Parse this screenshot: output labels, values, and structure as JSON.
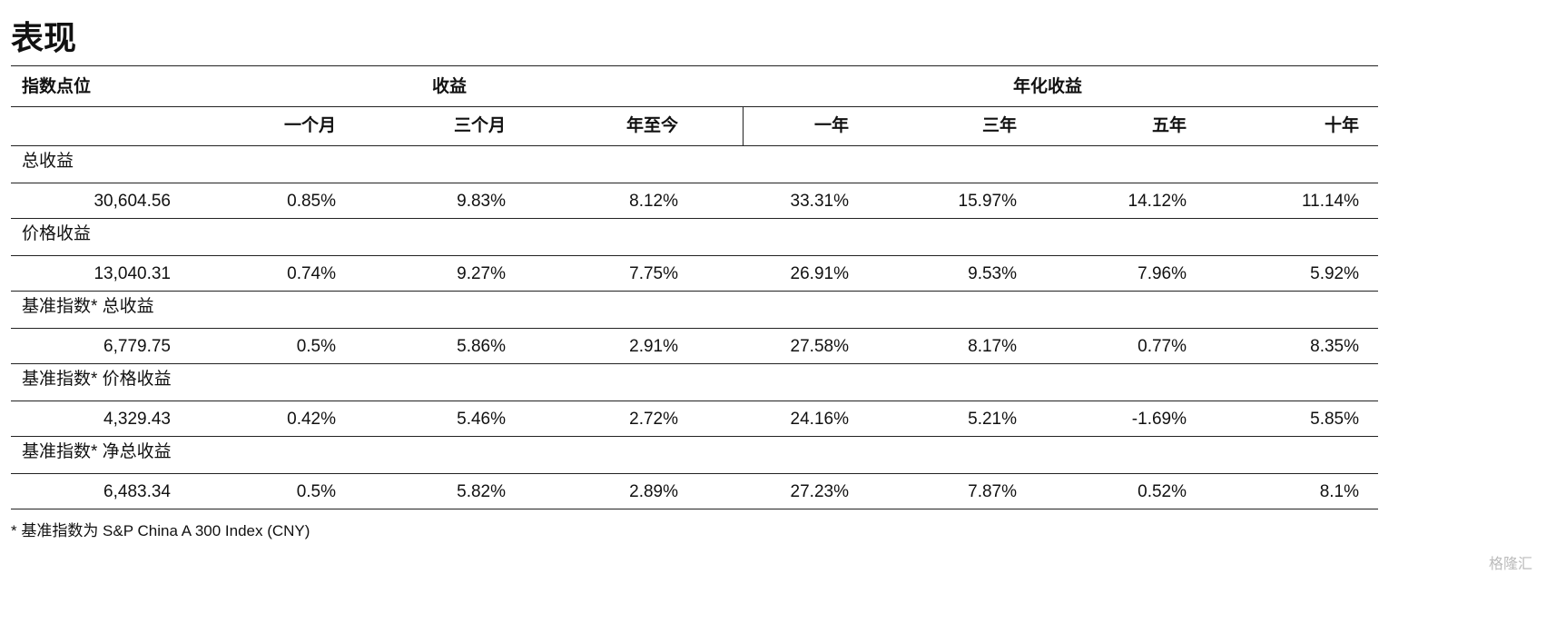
{
  "header": {
    "title": "表现"
  },
  "table": {
    "group_headers": [
      "指数点位",
      "收益",
      "年化收益"
    ],
    "columns": [
      "一个月",
      "三个月",
      "年至今",
      "一年",
      "三年",
      "五年",
      "十年"
    ],
    "sections": [
      {
        "label": "总收益",
        "values": [
          "30,604.56",
          "0.85%",
          "9.83%",
          "8.12%",
          "33.31%",
          "15.97%",
          "14.12%",
          "11.14%"
        ]
      },
      {
        "label": "价格收益",
        "values": [
          "13,040.31",
          "0.74%",
          "9.27%",
          "7.75%",
          "26.91%",
          "9.53%",
          "7.96%",
          "5.92%"
        ]
      },
      {
        "label": "基准指数* 总收益",
        "values": [
          "6,779.75",
          "0.5%",
          "5.86%",
          "2.91%",
          "27.58%",
          "8.17%",
          "0.77%",
          "8.35%"
        ]
      },
      {
        "label": "基准指数* 价格收益",
        "values": [
          "4,329.43",
          "0.42%",
          "5.46%",
          "2.72%",
          "24.16%",
          "5.21%",
          "-1.69%",
          "5.85%"
        ]
      },
      {
        "label": "基准指数* 净总收益",
        "values": [
          "6,483.34",
          "0.5%",
          "5.82%",
          "2.89%",
          "27.23%",
          "7.87%",
          "0.52%",
          "8.1%"
        ]
      }
    ]
  },
  "footnote": "* 基准指数为 S&P China A 300 Index (CNY)",
  "watermark": "格隆汇"
}
